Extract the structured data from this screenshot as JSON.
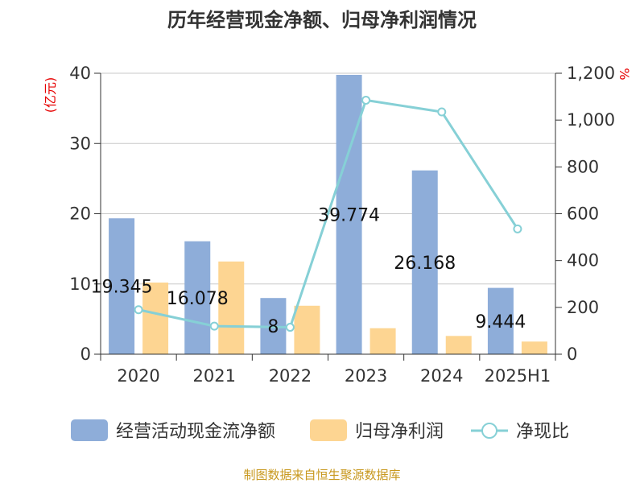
{
  "chart_data": {
    "type": "bar",
    "title": "历年经营现金净额、归母净利润情况",
    "categories": [
      "2020",
      "2021",
      "2022",
      "2023",
      "2024",
      "2025H1"
    ],
    "series": [
      {
        "name": "经营活动现金流净额",
        "type": "bar",
        "axis": "left",
        "color": "#8eadd9",
        "values": [
          19.345,
          16.078,
          8,
          39.774,
          26.168,
          9.444
        ],
        "labels": [
          "19.345",
          "16.078",
          "8",
          "39.774",
          "26.168",
          "9.444"
        ]
      },
      {
        "name": "归母净利润",
        "type": "bar",
        "axis": "left",
        "color": "#fdd592",
        "values": [
          10.2,
          13.2,
          6.9,
          3.7,
          2.6,
          1.8
        ]
      },
      {
        "name": "净现比",
        "type": "line",
        "axis": "right",
        "color": "#86d0d6",
        "values": [
          190,
          120,
          115,
          1085,
          1035,
          535
        ]
      }
    ],
    "left_axis": {
      "unit": "(亿元)",
      "min": 0,
      "max": 40,
      "ticks": [
        "0",
        "10",
        "20",
        "30",
        "40"
      ]
    },
    "right_axis": {
      "unit": "%",
      "min": 0,
      "max": 1200,
      "ticks": [
        "0",
        "200",
        "400",
        "600",
        "800",
        "1,000",
        "1,200"
      ]
    },
    "grid": true,
    "legend_position": "bottom"
  },
  "source": "制图数据来自恒生聚源数据库"
}
